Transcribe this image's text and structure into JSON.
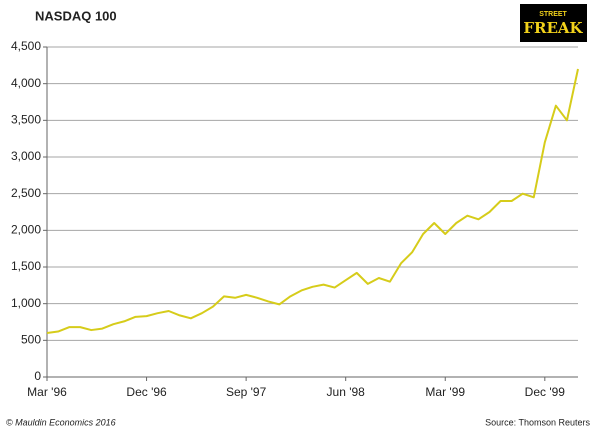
{
  "chart_data": {
    "type": "line",
    "title": "NASDAQ 100",
    "logo": [
      "STREET",
      "FREAK"
    ],
    "copyright": "© Mauldin Economics 2016",
    "source": "Source: Thomson Reuters",
    "categories": [
      "Mar '96",
      null,
      null,
      null,
      null,
      null,
      null,
      null,
      null,
      "Dec '96",
      null,
      null,
      null,
      null,
      null,
      null,
      null,
      null,
      "Sep '97",
      null,
      null,
      null,
      null,
      null,
      null,
      null,
      null,
      "Jun '98",
      null,
      null,
      null,
      null,
      null,
      null,
      null,
      null,
      "Mar '99",
      null,
      null,
      null,
      null,
      null,
      null,
      null,
      null,
      "Dec '99",
      null,
      null,
      null
    ],
    "series": [
      {
        "name": "NASDAQ 100",
        "color": "#d6cc1a",
        "values": [
          600,
          620,
          680,
          680,
          640,
          660,
          720,
          760,
          820,
          830,
          870,
          900,
          840,
          800,
          870,
          960,
          1100,
          1080,
          1120,
          1080,
          1030,
          990,
          1100,
          1180,
          1230,
          1260,
          1220,
          1320,
          1420,
          1270,
          1350,
          1300,
          1550,
          1700,
          1950,
          2100,
          1950,
          2100,
          2200,
          2150,
          2250,
          2400,
          2400,
          2500,
          2450,
          3200,
          3700,
          3500,
          4200
        ]
      }
    ],
    "ylim": [
      0,
      4500
    ],
    "yticks": [
      0,
      500,
      {
        "value": 1000,
        "label": "1,000"
      },
      {
        "value": 1500,
        "label": "1,500"
      },
      {
        "value": 2000,
        "label": "2,000"
      },
      {
        "value": 2500,
        "label": "2,500"
      },
      {
        "value": 3000,
        "label": "3,000"
      },
      {
        "value": 3500,
        "label": "3,500"
      },
      {
        "value": 4000,
        "label": "4,000"
      },
      {
        "value": 4500,
        "label": "4,500"
      }
    ],
    "grid": true
  }
}
